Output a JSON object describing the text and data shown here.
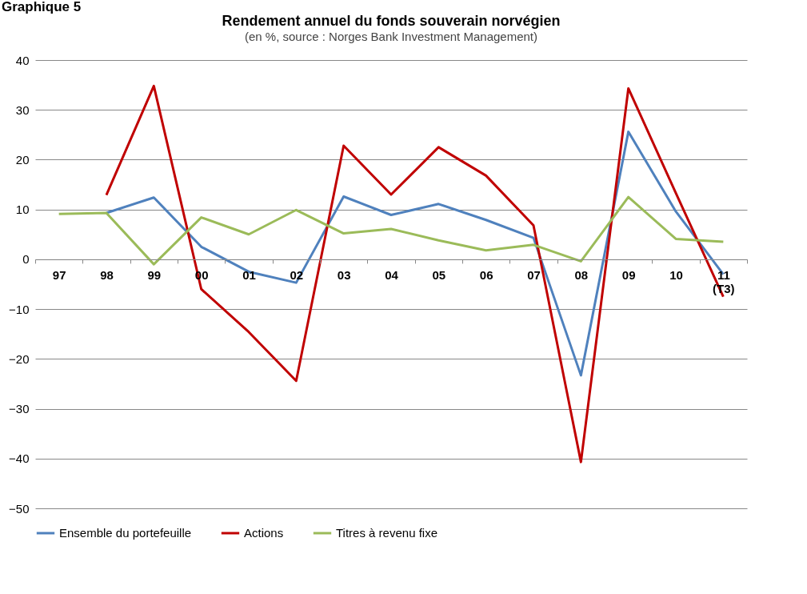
{
  "chart_data": {
    "type": "line",
    "title": "Rendement annuel du fonds souverain norvégien",
    "subtitle": "(en %, source : Norges Bank Investment Management)",
    "annotations": [
      "Graphique 5"
    ],
    "categories": [
      "97",
      "98",
      "99",
      "00",
      "01",
      "02",
      "03",
      "04",
      "05",
      "06",
      "07",
      "08",
      "09",
      "10",
      "11\n(T3)"
    ],
    "series": [
      {
        "name": "Ensemble du portefeuille",
        "color": "#4f81bd",
        "values": [
          null,
          9.3,
          12.4,
          2.5,
          -2.5,
          -4.7,
          12.6,
          8.9,
          11.1,
          7.9,
          4.3,
          -23.3,
          25.6,
          9.6,
          -3
        ]
      },
      {
        "name": "Actions",
        "color": "#c00000",
        "values": [
          null,
          12.9,
          34.8,
          -6,
          -14.6,
          -24.4,
          22.8,
          13,
          22.5,
          16.8,
          6.8,
          -40.7,
          34.3,
          13.3,
          -7.5
        ]
      },
      {
        "name": "Titres à revenu fixe",
        "color": "#9bbb59",
        "values": [
          9.1,
          9.3,
          -1,
          8.4,
          5,
          9.9,
          5.2,
          6.1,
          3.8,
          1.8,
          2.9,
          -0.4,
          12.5,
          4.1,
          3.5
        ]
      }
    ],
    "ylim": [
      -50,
      40
    ],
    "yticks": [
      -50,
      -40,
      -30,
      -20,
      -10,
      0,
      10,
      20,
      30,
      40
    ],
    "grid": "y",
    "legend": "bottom",
    "marker": "none",
    "line_style": "solid"
  }
}
